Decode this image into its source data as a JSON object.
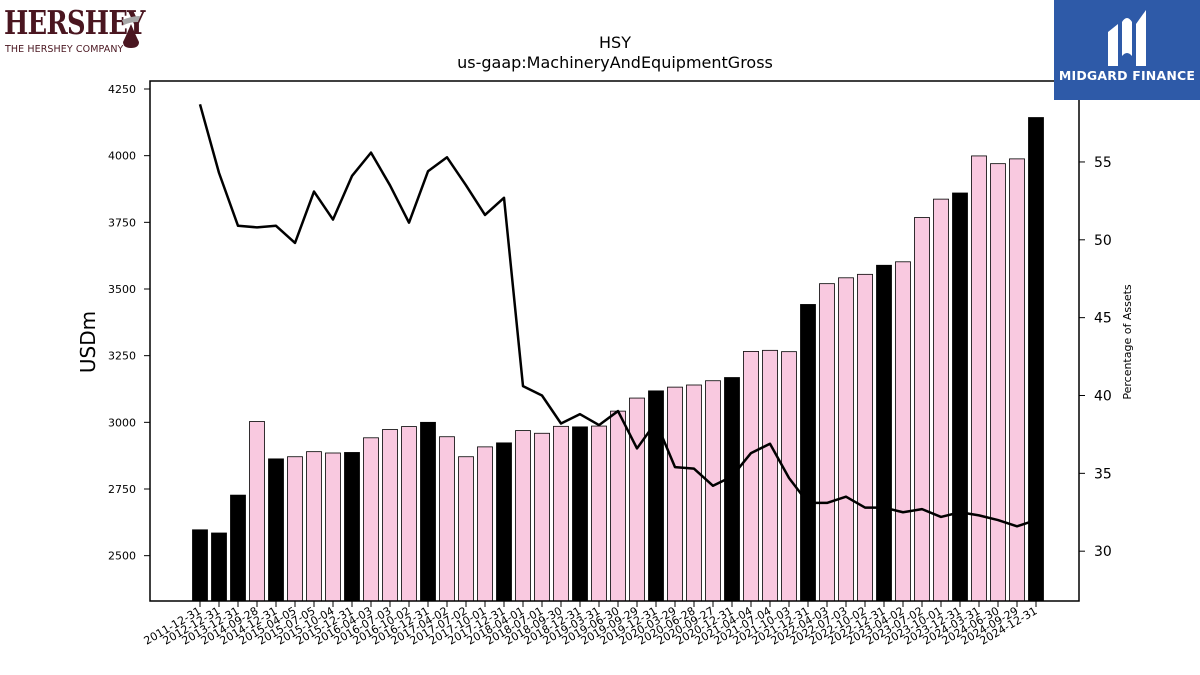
{
  "logos": {
    "left_word": "HERSHEY",
    "left_sub": "THE HERSHEY COMPANY",
    "right_brand": "MIDGARD FINANCE"
  },
  "colors": {
    "bar_highlight": "#000000",
    "bar_normal": "#f9c9e0",
    "bar_edge": "#000000",
    "line": "#000000",
    "left_logo": "#4a1620",
    "right_logo_bg": "#2e5aa8"
  },
  "chart_data": {
    "type": "bar",
    "title": "HSY",
    "subtitle": "us-gaap:MachineryAndEquipmentGross",
    "ylabel": "USDm",
    "y2label": "Percentage of Assets",
    "ylim": [
      2330,
      4280
    ],
    "y2lim": [
      26.8,
      60.2
    ],
    "yticks": [
      2500,
      2750,
      3000,
      3250,
      3500,
      3750,
      4000,
      4250
    ],
    "y2ticks": [
      30,
      35,
      40,
      45,
      50,
      55
    ],
    "grid": false,
    "categories": [
      "2011-12-31",
      "2012-12-31",
      "2013-12-31",
      "2014-09-28",
      "2014-12-31",
      "2015-04-05",
      "2015-07-05",
      "2015-10-04",
      "2015-12-31",
      "2016-04-03",
      "2016-07-03",
      "2016-10-02",
      "2016-12-31",
      "2017-04-02",
      "2017-07-02",
      "2017-10-01",
      "2017-12-31",
      "2018-04-01",
      "2018-07-01",
      "2018-09-30",
      "2018-12-31",
      "2019-03-31",
      "2019-06-30",
      "2019-09-29",
      "2019-12-31",
      "2020-03-29",
      "2020-06-28",
      "2020-09-27",
      "2020-12-31",
      "2021-04-04",
      "2021-07-04",
      "2021-10-03",
      "2021-12-31",
      "2022-04-03",
      "2022-07-03",
      "2022-10-02",
      "2022-12-31",
      "2023-04-02",
      "2023-07-02",
      "2023-10-01",
      "2023-12-31",
      "2024-03-31",
      "2024-06-30",
      "2024-09-29",
      "2024-12-31"
    ],
    "series": [
      {
        "kind": "bar",
        "values": [
          2597,
          2585,
          2727,
          3003,
          2863,
          2871,
          2890,
          2885,
          2887,
          2942,
          2973,
          2984,
          3000,
          2946,
          2871,
          2908,
          2923,
          2969,
          2959,
          2985,
          2983,
          2986,
          3042,
          3091,
          3118,
          3132,
          3140,
          3156,
          3168,
          3266,
          3270,
          3265,
          3442,
          3520,
          3542,
          3555,
          3589,
          3602,
          3768,
          3837,
          3860,
          3999,
          3970,
          3988,
          4143
        ],
        "highlighted": [
          true,
          true,
          true,
          false,
          true,
          false,
          false,
          false,
          true,
          false,
          false,
          false,
          true,
          false,
          false,
          false,
          true,
          false,
          false,
          false,
          true,
          false,
          false,
          false,
          true,
          false,
          false,
          false,
          true,
          false,
          false,
          false,
          true,
          false,
          false,
          false,
          true,
          false,
          false,
          false,
          true,
          false,
          false,
          false,
          true
        ]
      },
      {
        "kind": "line",
        "axis": "right",
        "values": [
          58.7,
          54.3,
          50.9,
          50.8,
          50.9,
          49.8,
          53.1,
          51.3,
          54.1,
          55.6,
          53.5,
          51.1,
          54.4,
          55.3,
          53.5,
          51.6,
          52.7,
          40.6,
          40.0,
          38.2,
          38.8,
          38.1,
          39.0,
          36.6,
          38.3,
          35.4,
          35.3,
          34.2,
          34.8,
          36.3,
          36.9,
          34.7,
          33.1,
          33.1,
          33.5,
          32.8,
          32.8,
          32.5,
          32.7,
          32.2,
          32.5,
          32.3,
          32.0,
          31.6,
          32.0
        ]
      }
    ]
  }
}
